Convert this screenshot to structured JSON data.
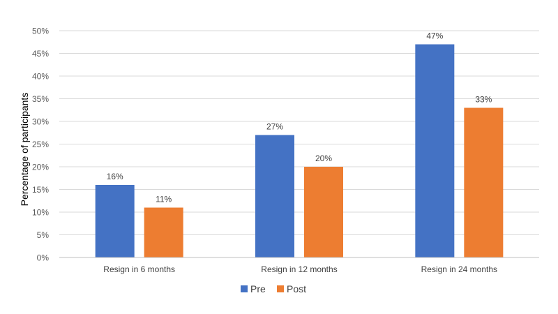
{
  "chart_data": {
    "type": "bar",
    "title": "",
    "xlabel": "",
    "ylabel": "Percentage of participants",
    "ylim": [
      0,
      50
    ],
    "y_ticks": [
      "0%",
      "5%",
      "10%",
      "15%",
      "20%",
      "25%",
      "30%",
      "35%",
      "40%",
      "45%",
      "50%"
    ],
    "y_tick_values": [
      0,
      5,
      10,
      15,
      20,
      25,
      30,
      35,
      40,
      45,
      50
    ],
    "categories": [
      "Resign in 6 months",
      "Resign in 12 months",
      "Resign in 24 months"
    ],
    "series": [
      {
        "name": "Pre",
        "color": "#4472C4",
        "values": [
          16,
          27,
          47
        ],
        "labels": [
          "16%",
          "27%",
          "47%"
        ]
      },
      {
        "name": "Post",
        "color": "#ED7D31",
        "values": [
          11,
          20,
          33
        ],
        "labels": [
          "11%",
          "20%",
          "33%"
        ]
      }
    ],
    "grid": true,
    "legend_position": "bottom"
  }
}
